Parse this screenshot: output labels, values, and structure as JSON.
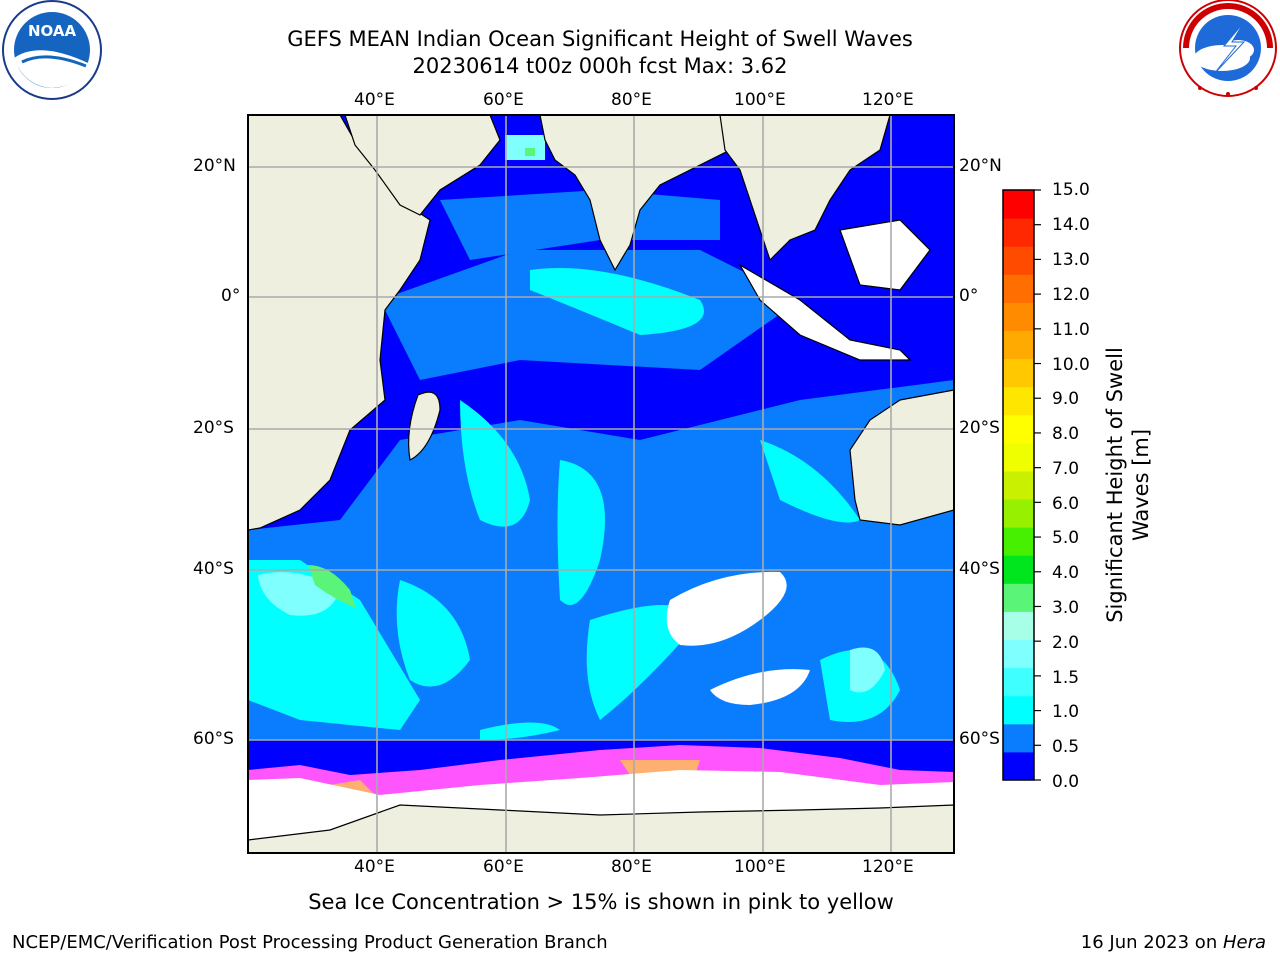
{
  "title": {
    "line1": "GEFS MEAN Indian Ocean Significant Height of Swell Waves",
    "line2": "20230614 t00z 000h fcst   Max: 3.62"
  },
  "logos": {
    "left": {
      "text": "NOAA",
      "ring": "NATIONAL OCEANIC AND ATMOSPHERIC ADMINISTRATION · U.S. DEPARTMENT OF COMMERCE"
    },
    "right": {
      "ring": "NATIONAL WEATHER SERVICE"
    }
  },
  "map": {
    "lon_labels": [
      "40°E",
      "60°E",
      "80°E",
      "100°E",
      "120°E"
    ],
    "lat_labels": [
      "20°N",
      "0°",
      "20°S",
      "40°S",
      "60°S"
    ]
  },
  "colorbar": {
    "title_line1": "Significant Height of Swell",
    "title_line2": "Waves [m]",
    "ticks": [
      "15.0",
      "14.0",
      "13.0",
      "12.0",
      "11.0",
      "10.0",
      "9.0",
      "8.0",
      "7.0",
      "6.0",
      "5.0",
      "4.0",
      "3.0",
      "2.0",
      "1.5",
      "1.0",
      "0.5",
      "0.0"
    ],
    "colors": [
      "#0000ff",
      "#0a7dff",
      "#00ffff",
      "#40ffff",
      "#80ffff",
      "#a8ffe8",
      "#5af578",
      "#00e61e",
      "#46f000",
      "#96f000",
      "#c8f000",
      "#f0ff00",
      "#ffff00",
      "#ffe600",
      "#ffc800",
      "#ffaa00",
      "#ff8c00",
      "#ff6e00",
      "#ff4b00",
      "#ff2800",
      "#ff0000"
    ]
  },
  "caption": "Sea Ice Concentration > 15% is shown in pink to yellow",
  "footer": {
    "left": "NCEP/EMC/Verification Post Processing Product Generation Branch",
    "right_prefix": "16 Jun 2023 on ",
    "right_host": "Hera"
  }
}
